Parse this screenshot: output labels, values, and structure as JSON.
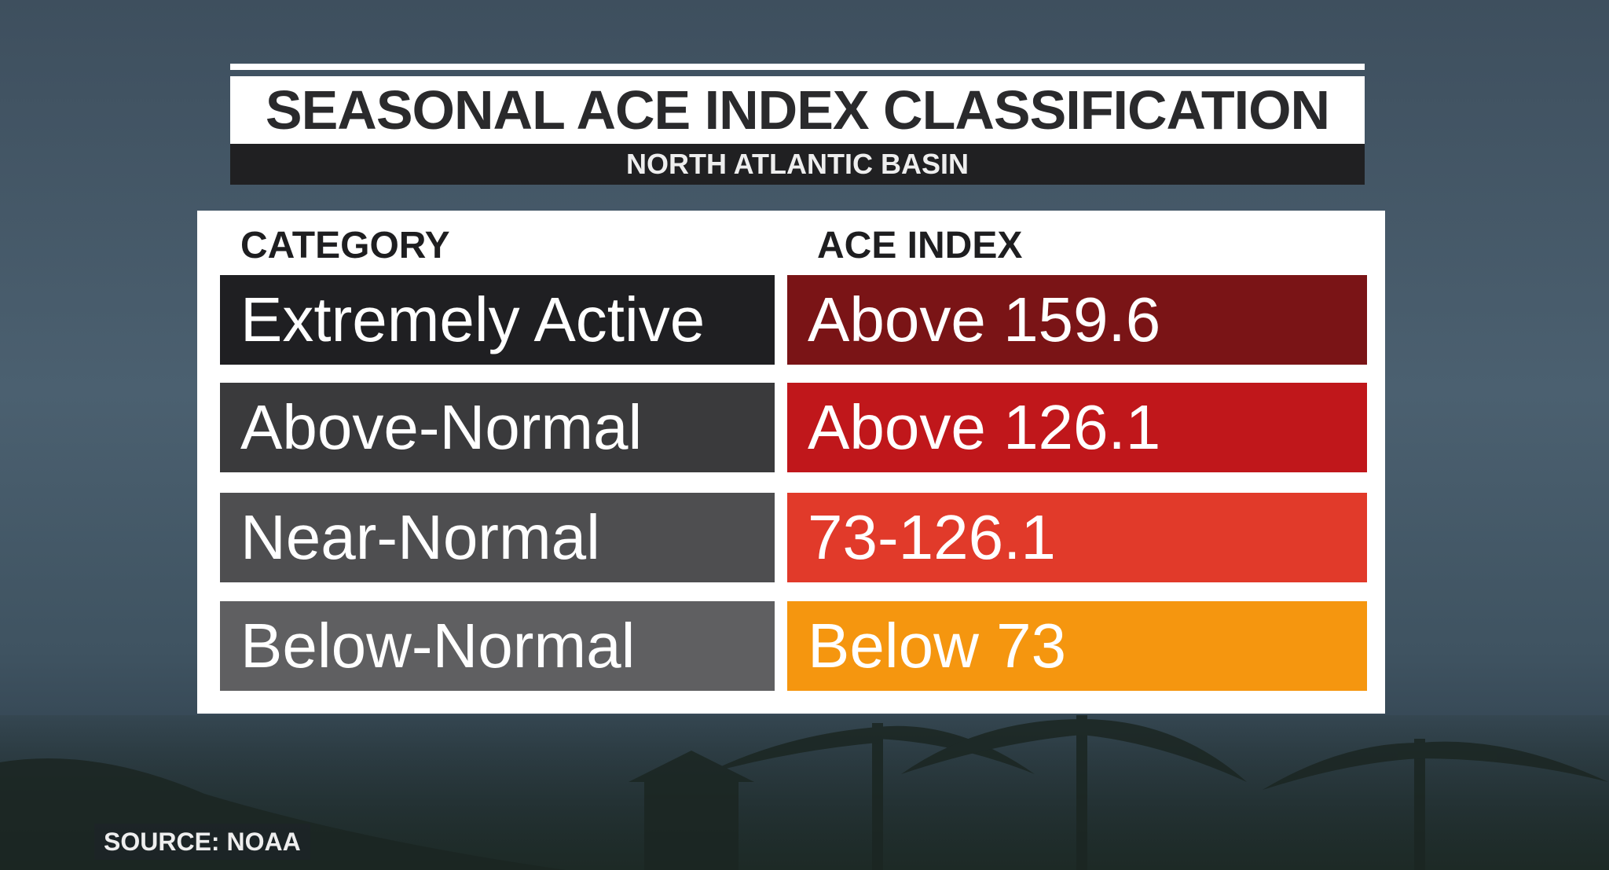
{
  "header": {
    "title": "SEASONAL ACE INDEX CLASSIFICATION",
    "subtitle": "NORTH ATLANTIC BASIN"
  },
  "table": {
    "columns": [
      "CATEGORY",
      "ACE INDEX"
    ],
    "rows": [
      [
        "Extremely Active",
        "Above 159.6"
      ],
      [
        "Above-Normal",
        "Above 126.1"
      ],
      [
        "Near-Normal",
        "73-126.1"
      ],
      [
        "Below-Normal",
        "Below 73"
      ]
    ]
  },
  "source": "SOURCE: NOAA"
}
